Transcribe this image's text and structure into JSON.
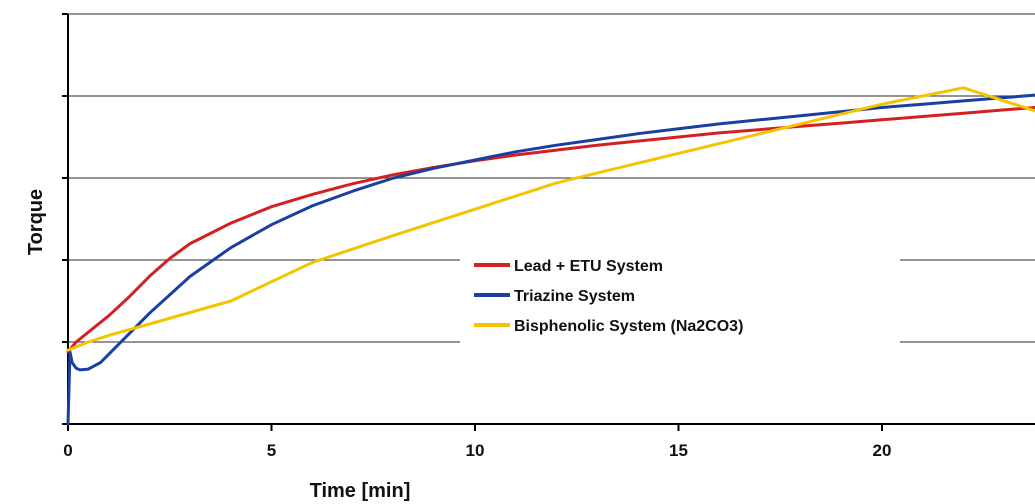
{
  "chart_data": {
    "type": "line",
    "xlabel": "Time [min]",
    "ylabel": "Torque",
    "xlim": [
      0,
      24
    ],
    "ylim": [
      0,
      5
    ],
    "x_ticks": [
      "0",
      "5",
      "10",
      "15",
      "20"
    ],
    "y_gridlines": [
      1,
      2,
      3,
      4,
      5
    ],
    "y_tick_labels_shown": false,
    "grid": true,
    "legend_position": "center-right",
    "series": [
      {
        "name": "Lead + ETU System",
        "color": "#d42020",
        "x": [
          0,
          0.2,
          0.5,
          1,
          1.5,
          2,
          2.5,
          3,
          4,
          5,
          6,
          7,
          8,
          9,
          10,
          11,
          12,
          13,
          14,
          15,
          16,
          17,
          18,
          19,
          20,
          21,
          22,
          23,
          24
        ],
        "y": [
          0.88,
          1.0,
          1.12,
          1.32,
          1.55,
          1.8,
          2.02,
          2.2,
          2.45,
          2.65,
          2.8,
          2.93,
          3.04,
          3.13,
          3.21,
          3.28,
          3.34,
          3.4,
          3.45,
          3.5,
          3.55,
          3.59,
          3.63,
          3.67,
          3.71,
          3.75,
          3.79,
          3.83,
          3.87
        ]
      },
      {
        "name": "Triazine System",
        "color": "#1a3fa0",
        "x": [
          0,
          0.05,
          0.1,
          0.2,
          0.3,
          0.5,
          0.8,
          1,
          1.5,
          2,
          3,
          4,
          5,
          6,
          7,
          8,
          9,
          10,
          11,
          12,
          13,
          14,
          15,
          16,
          17,
          18,
          19,
          20,
          21,
          22,
          23,
          24
        ],
        "y": [
          0,
          0.88,
          0.75,
          0.68,
          0.66,
          0.67,
          0.75,
          0.85,
          1.1,
          1.35,
          1.8,
          2.15,
          2.43,
          2.66,
          2.84,
          3.0,
          3.12,
          3.22,
          3.32,
          3.4,
          3.47,
          3.54,
          3.6,
          3.66,
          3.71,
          3.76,
          3.81,
          3.86,
          3.9,
          3.94,
          3.98,
          4.02
        ]
      },
      {
        "name": "Bisphenolic System (Na2CO3)",
        "color": "#f5c400",
        "x": [
          0,
          0.5,
          1,
          2,
          4,
          6,
          8,
          10,
          12,
          14,
          16,
          18,
          20,
          22,
          24
        ],
        "y": [
          0.9,
          1.0,
          1.08,
          1.22,
          1.5,
          1.97,
          2.3,
          2.62,
          2.94,
          3.18,
          3.42,
          3.66,
          3.9,
          4.1,
          3.78
        ]
      }
    ]
  }
}
